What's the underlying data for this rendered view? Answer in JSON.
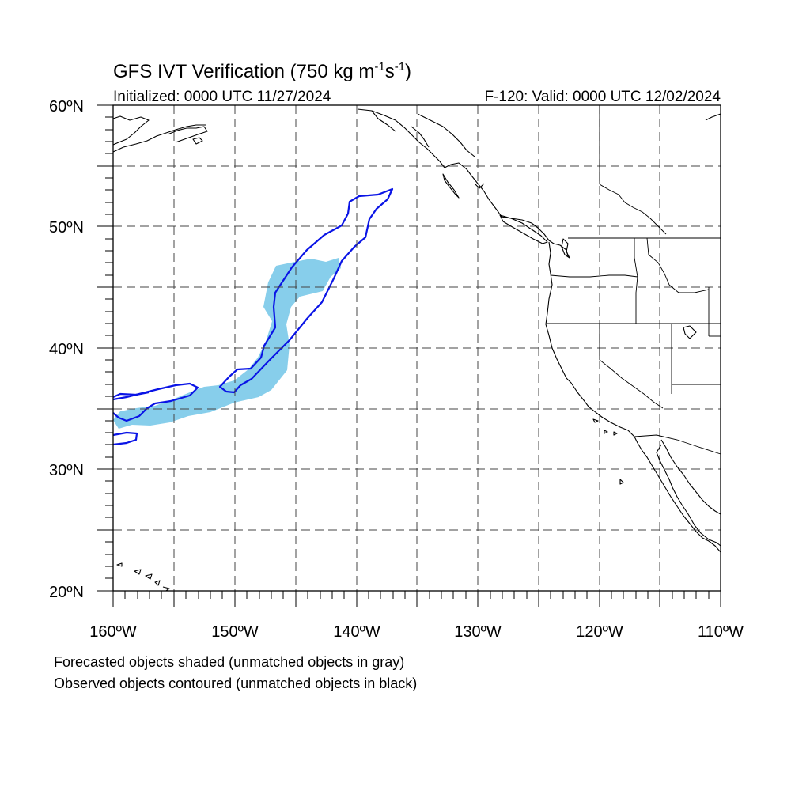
{
  "title": {
    "main": "GFS IVT Verification (750 kg m",
    "sup1": "-1",
    "mid": "s",
    "sup2": "-1",
    "end": ")"
  },
  "initialized": "Initialized: 0000 UTC 11/27/2024",
  "valid": "F-120: Valid: 0000 UTC 12/02/2024",
  "lat_labels": [
    "60ºN",
    "50ºN",
    "40ºN",
    "30ºN",
    "20ºN"
  ],
  "lon_labels": [
    "160ºW",
    "150ºW",
    "140ºW",
    "130ºW",
    "120ºW",
    "110ºW"
  ],
  "legend": {
    "line1": "Forecasted objects shaded (unmatched objects in gray)",
    "line2": "Observed objects contoured (unmatched objects in black)"
  },
  "colors": {
    "forecast_fill": "#87ceeb",
    "observed_contour": "#0a14e6"
  },
  "map_extent": {
    "lon": [
      -160,
      -110
    ],
    "lat": [
      20,
      60
    ]
  }
}
